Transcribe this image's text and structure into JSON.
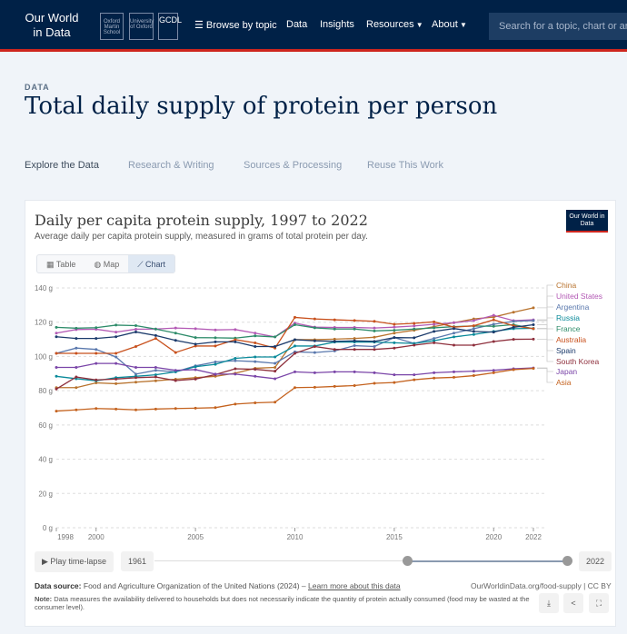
{
  "header": {
    "logo": "Our World in Data",
    "institutions": [
      "Oxford Martin School",
      "University of Oxford",
      "GCDL"
    ],
    "nav": [
      {
        "label": "Browse by topic"
      },
      {
        "label": "Data"
      },
      {
        "label": "Insights"
      },
      {
        "label": "Resources"
      },
      {
        "label": "About"
      }
    ],
    "search_placeholder": "Search for a topic, chart or article..."
  },
  "page": {
    "label": "DATA",
    "title": "Total daily supply of protein per person",
    "tabs": [
      "Explore the Data",
      "Research & Writing",
      "Sources & Processing",
      "Reuse This Work"
    ]
  },
  "card": {
    "badge": "Our World in Data",
    "view_tabs": [
      "Table",
      "Map",
      "Chart"
    ],
    "play_label": "Play time-lapse",
    "start_year": "1961",
    "end_year": "2022",
    "source_label": "Data source:",
    "source_text": "Food and Agriculture Organization of the United Nations (2024)",
    "source_sep": " – ",
    "learn_more": "Learn more about this data",
    "license": "OurWorldinData.org/food-supply | CC BY",
    "note_label": "Note:",
    "note_text": "Data measures the availability delivered to households but does not necessarily indicate the quantity of protein actually consumed (food may be wasted at the consumer level)."
  },
  "chart_data": {
    "type": "line",
    "title": "Daily per capita protein supply, 1997 to 2022",
    "subtitle": "Average daily per capita protein supply, measured in grams of total protein per day.",
    "xlabel": "",
    "ylabel": "",
    "ylim": [
      0,
      140
    ],
    "yticks": [
      "0 g",
      "20 g",
      "40 g",
      "60 g",
      "80 g",
      "100 g",
      "120 g",
      "140 g"
    ],
    "xticks": [
      1998,
      2000,
      2005,
      2010,
      2015,
      2020,
      2022
    ],
    "x": [
      1998,
      1999,
      2000,
      2001,
      2002,
      2003,
      2004,
      2005,
      2006,
      2007,
      2008,
      2009,
      2010,
      2011,
      2012,
      2013,
      2014,
      2015,
      2016,
      2017,
      2018,
      2019,
      2020,
      2021,
      2022
    ],
    "legend_placement": "right",
    "series": [
      {
        "name": "China",
        "color": "#b8732e",
        "values": [
          81.8,
          81.8,
          84.6,
          84.1,
          85,
          85.8,
          86.7,
          87.6,
          88.4,
          90.2,
          93.1,
          93.6,
          109.8,
          109.8,
          110.1,
          110.5,
          111.2,
          113.6,
          115.3,
          117.4,
          119.7,
          121.9,
          123,
          125.8,
          128.4
        ]
      },
      {
        "name": "United States",
        "color": "#b35ab5",
        "values": [
          113.6,
          115.7,
          115.9,
          114.2,
          115.9,
          116,
          116.6,
          116.2,
          115.5,
          115.7,
          113.6,
          111.4,
          119.5,
          117.1,
          116.9,
          116.9,
          116.6,
          117.1,
          117.8,
          118.8,
          119.7,
          120.9,
          124,
          120.9,
          121.4
        ]
      },
      {
        "name": "Argentina",
        "color": "#5a78ad",
        "values": [
          101.8,
          104.9,
          104.1,
          99.7,
          89.7,
          91.9,
          91,
          94.5,
          96.8,
          97.5,
          97,
          96,
          102.7,
          102.3,
          103.2,
          106.3,
          105.8,
          111,
          107.6,
          110.5,
          113.6,
          116.2,
          118.8,
          120.5,
          120.9
        ]
      },
      {
        "name": "Russia",
        "color": "#0a8a9a",
        "values": [
          88.4,
          87,
          85.8,
          87.6,
          88.4,
          89.3,
          91,
          94,
          95.4,
          98.9,
          99.7,
          99.7,
          106.1,
          106.1,
          108.4,
          108.4,
          108.4,
          108,
          107.6,
          109.2,
          111.4,
          112.8,
          114.6,
          116.2,
          116.4
        ]
      },
      {
        "name": "France",
        "color": "#2e8c6a",
        "values": [
          117,
          116.5,
          116.8,
          118.3,
          118,
          116,
          113.6,
          111,
          110.9,
          110.7,
          112,
          111.4,
          118.5,
          116.7,
          116,
          116,
          114.9,
          115.3,
          116,
          116.7,
          117.4,
          117.8,
          117.6,
          118.6,
          116.2
        ]
      },
      {
        "name": "Australia",
        "color": "#c8501c",
        "values": [
          101.8,
          101.8,
          101.8,
          101.8,
          105.8,
          110.5,
          102.3,
          106.1,
          106.1,
          109.8,
          107.9,
          104.9,
          122.8,
          121.9,
          121.4,
          121,
          120.5,
          118.8,
          119.3,
          120.2,
          117.1,
          117.9,
          121.4,
          117.9,
          116.2
        ]
      },
      {
        "name": "Spain",
        "color": "#1b3a6b",
        "values": [
          111.5,
          110.5,
          110.5,
          111.5,
          114.3,
          112.2,
          109.4,
          107.2,
          108.5,
          108.5,
          105.8,
          105.8,
          109.8,
          109.1,
          108.8,
          109.1,
          108.8,
          111,
          110.9,
          114.6,
          116.3,
          114.6,
          114.2,
          117,
          118.5
        ]
      },
      {
        "name": "South Korea",
        "color": "#8e2f3c",
        "values": [
          81,
          88,
          86.3,
          86.8,
          87.6,
          88,
          85.9,
          86.8,
          89.4,
          92.8,
          92.5,
          91.4,
          101.8,
          105.8,
          104.1,
          104.1,
          104.1,
          104.9,
          106.6,
          108,
          106.6,
          106.6,
          108.7,
          110,
          110.1
        ]
      },
      {
        "name": "Japan",
        "color": "#7a45a8",
        "values": [
          93.6,
          93.6,
          95.9,
          95.9,
          93.6,
          93.6,
          91.9,
          92.3,
          89.7,
          89.7,
          88.4,
          87,
          91,
          90.5,
          91,
          91,
          90.5,
          89.3,
          89.3,
          90.5,
          91,
          91.4,
          91.9,
          92.8,
          93.3
        ]
      },
      {
        "name": "Asia",
        "color": "#c4621e",
        "values": [
          68.1,
          68.8,
          69.6,
          69.3,
          68.8,
          69.3,
          69.6,
          69.8,
          70.1,
          72.2,
          72.9,
          73.3,
          81.8,
          82,
          82.5,
          83,
          84.3,
          84.8,
          86.4,
          87.4,
          87.8,
          88.8,
          90.5,
          92.3,
          93
        ]
      }
    ]
  }
}
